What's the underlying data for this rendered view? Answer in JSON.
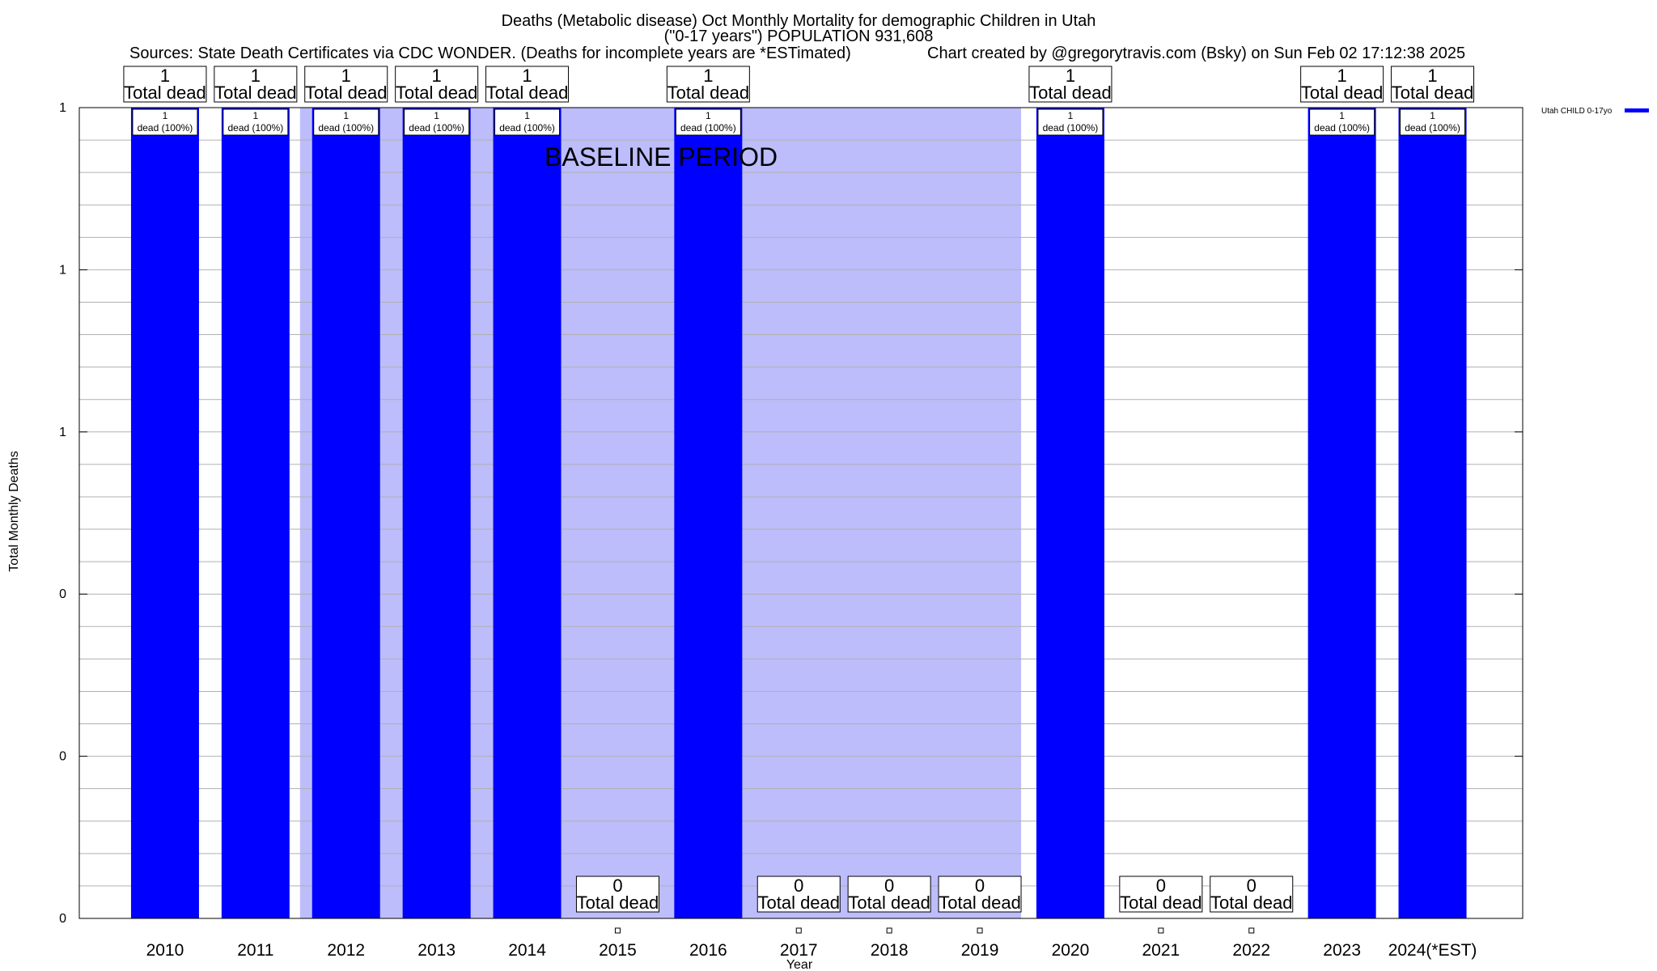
{
  "chart_data": {
    "type": "bar",
    "title_line1": "Deaths (Metabolic disease) Oct Monthly Mortality for demographic Children in Utah",
    "title_line2": "(\"0-17 years\") POPULATION 931,608",
    "sources": "Sources: State Death Certificates via CDC WONDER. (Deaths for incomplete years are *ESTimated)",
    "credit": "Chart created by @gregorytravis.com (Bsky) on Sun Feb 02 17:12:38 2025",
    "xlabel": "Year",
    "ylabel": "Total Monthly Deaths",
    "ylim": [
      0,
      1
    ],
    "y_ticks": [
      0,
      0.2,
      0.4,
      0.6,
      0.8,
      1
    ],
    "y_tick_labels": [
      "0",
      "0",
      "0",
      "1",
      "1",
      "1"
    ],
    "grid": true,
    "legend_placement": "top-right",
    "series": [
      {
        "name": "Utah CHILD 0-17yo",
        "color": "#0000ff",
        "values": [
          1,
          1,
          1,
          1,
          1,
          0,
          1,
          0,
          0,
          0,
          1,
          0,
          0,
          1,
          1
        ]
      }
    ],
    "categories": [
      "2010",
      "2011",
      "2012",
      "2013",
      "2014",
      "2015",
      "2016",
      "2017",
      "2018",
      "2019",
      "2020",
      "2021",
      "2022",
      "2023",
      "2024(*EST)"
    ],
    "top_labels": [
      "1",
      "1",
      "1",
      "1",
      "1",
      "0",
      "1",
      "0",
      "0",
      "0",
      "1",
      "0",
      "0",
      "1",
      "1"
    ],
    "total_dead_text": "Total dead",
    "inner_labels": [
      "1",
      "1",
      "1",
      "1",
      "1",
      "",
      "1",
      "",
      "",
      "",
      "1",
      "",
      "",
      "1",
      "1"
    ],
    "inner_pct_text": "dead (100%)",
    "baseline": {
      "label": "BASELINE PERIOD",
      "from": "2012",
      "to": "2019",
      "color": "#bdbdfb"
    }
  }
}
